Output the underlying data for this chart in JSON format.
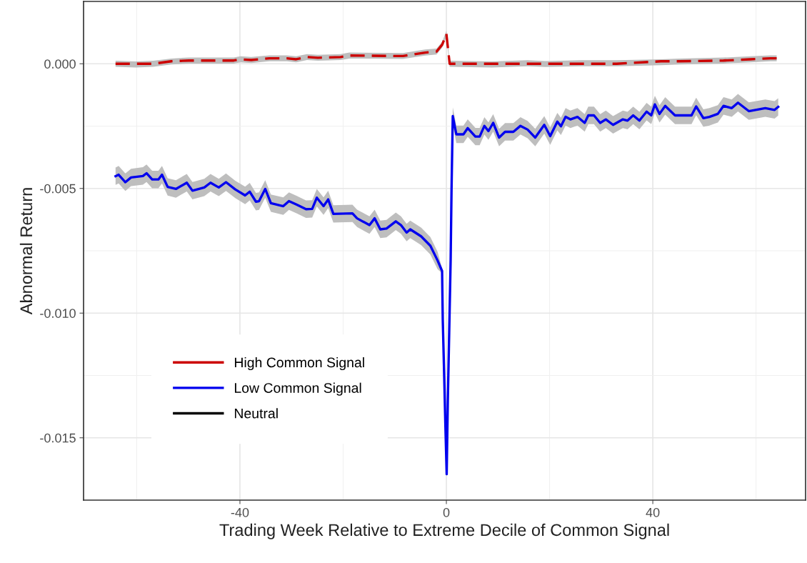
{
  "chart_data": {
    "type": "line",
    "xlabel": "Trading Week Relative to Extreme Decile of Common Signal",
    "ylabel": "Abnormal Return",
    "xlim": [
      -70.3,
      69.6
    ],
    "ylim": [
      -0.0175,
      0.0025
    ],
    "xticks": [
      -40,
      0,
      40
    ],
    "yticks": [
      {
        "value": -0.015,
        "label": "-0.015"
      },
      {
        "value": -0.01,
        "label": "-0.010"
      },
      {
        "value": -0.005,
        "label": "-0.005"
      },
      {
        "value": 0,
        "label": "0.000"
      }
    ],
    "grid": true,
    "legend": "bottom left",
    "series": [
      {
        "name": "High Common Signal",
        "color": "#cc0000",
        "line_style": "dashed",
        "x": [
          -64.1,
          -60.2,
          -56.8,
          -53.3,
          -49.9,
          -41.2,
          -39.9,
          -37.8,
          -34.3,
          -30.9,
          -29.1,
          -27.0,
          -24.9,
          -20.5,
          -18.8,
          -8.4,
          -4.1,
          -1.9,
          -0.8,
          0,
          0.64,
          8.8,
          15.7,
          19.2,
          26.1,
          33.0,
          41.6,
          45.1,
          53.7,
          58.9,
          62.8,
          64.0
        ],
        "values": [
          0.0,
          0.0,
          0.0,
          0.0001,
          0.00013,
          0.00013,
          0.00018,
          0.00015,
          0.00022,
          0.00022,
          0.00018,
          0.00027,
          0.00024,
          0.00027,
          0.00033,
          0.00031,
          0.00045,
          0.00049,
          0.00077,
          0.0012,
          0.0,
          0.0,
          0.0,
          0.0,
          0.0,
          0.0,
          0.0001,
          0.0001,
          0.00013,
          0.00018,
          0.00022,
          0.00022
        ],
        "lower": [
          -0.00012,
          -0.00015,
          -0.00012,
          -3e-05,
          1e-05,
          1e-05,
          6e-05,
          3e-05,
          0.0001,
          0.0001,
          6e-05,
          0.00015,
          0.00012,
          0.00015,
          0.00021,
          0.00019,
          0.00033,
          0.00037,
          0.00065,
          0.00108,
          -0.00012,
          -0.00015,
          -0.0001,
          -0.00013,
          -0.0001,
          -0.0001,
          -6e-05,
          -3e-05,
          1e-05,
          6e-05,
          0.0001,
          0.0001
        ],
        "upper": [
          0.00012,
          9e-05,
          0.00012,
          0.00021,
          0.00025,
          0.00025,
          0.0003,
          0.00027,
          0.00034,
          0.00034,
          0.0003,
          0.00039,
          0.00036,
          0.00039,
          0.00045,
          0.00043,
          0.00057,
          0.00061,
          0.00089,
          0.00132,
          0.00012,
          9e-05,
          0.00014,
          0.00011,
          0.00014,
          0.00014,
          0.00018,
          0.00021,
          0.00025,
          0.0003,
          0.00034,
          0.00034
        ]
      },
      {
        "name": "Low Common Signal",
        "color": "#0000ee",
        "line_style": "solid",
        "x": [
          -64.1,
          -63.5,
          -62.2,
          -61.1,
          -58.8,
          -58.1,
          -57.0,
          -55.8,
          -55.1,
          -54.0,
          -52.4,
          -50.3,
          -49.2,
          -46.9,
          -45.7,
          -44.1,
          -42.7,
          -40.9,
          -39.0,
          -38.1,
          -36.9,
          -36.3,
          -35.1,
          -34.0,
          -31.6,
          -30.5,
          -28.9,
          -27.2,
          -26.0,
          -25.1,
          -23.8,
          -22.9,
          -21.9,
          -18.2,
          -17.3,
          -14.9,
          -13.9,
          -12.8,
          -11.6,
          -9.8,
          -8.8,
          -7.7,
          -7.0,
          -4.9,
          -3.1,
          -1.7,
          -0.83,
          -0.7,
          -0.44,
          -0.2,
          0.06,
          0.28,
          0.55,
          0.83,
          1.0,
          1.24,
          1.93,
          3.31,
          4.14,
          5.62,
          6.45,
          7.37,
          8.15,
          9.07,
          10.22,
          11.37,
          12.98,
          14.36,
          15.74,
          17.22,
          18.97,
          20.12,
          21.5,
          22.2,
          23.1,
          24.03,
          25.4,
          26.8,
          27.5,
          28.6,
          29.8,
          30.9,
          32.3,
          34.2,
          35.1,
          36.2,
          37.4,
          38.8,
          39.7,
          40.4,
          41.3,
          42.4,
          44.3,
          47.5,
          48.4,
          49.8,
          50.96,
          52.6,
          53.7,
          55.3,
          56.5,
          58.6,
          61.8,
          63.6,
          64.3
        ],
        "values": [
          -0.00451,
          -0.00445,
          -0.00475,
          -0.00456,
          -0.0045,
          -0.00439,
          -0.00464,
          -0.00464,
          -0.00445,
          -0.00494,
          -0.00502,
          -0.00477,
          -0.00509,
          -0.00496,
          -0.00477,
          -0.00496,
          -0.00475,
          -0.00504,
          -0.00528,
          -0.00513,
          -0.00553,
          -0.00551,
          -0.00502,
          -0.00559,
          -0.00571,
          -0.00551,
          -0.00566,
          -0.00583,
          -0.00582,
          -0.00537,
          -0.00571,
          -0.00544,
          -0.00602,
          -0.006,
          -0.0062,
          -0.00647,
          -0.0062,
          -0.00664,
          -0.00661,
          -0.00632,
          -0.00647,
          -0.00677,
          -0.00664,
          -0.00692,
          -0.0073,
          -0.00789,
          -0.00831,
          -0.01026,
          -0.01237,
          -0.01443,
          -0.01646,
          -0.01351,
          -0.01077,
          -0.00786,
          -0.00506,
          -0.0021,
          -0.00283,
          -0.00283,
          -0.00258,
          -0.00292,
          -0.00292,
          -0.00249,
          -0.0027,
          -0.00237,
          -0.00296,
          -0.00273,
          -0.00273,
          -0.00249,
          -0.00264,
          -0.00296,
          -0.00245,
          -0.0029,
          -0.00232,
          -0.00251,
          -0.00213,
          -0.00223,
          -0.00213,
          -0.00237,
          -0.00207,
          -0.00207,
          -0.00237,
          -0.00223,
          -0.00245,
          -0.00223,
          -0.00228,
          -0.00207,
          -0.00228,
          -0.00192,
          -0.00207,
          -0.00163,
          -0.00201,
          -0.00169,
          -0.00207,
          -0.00207,
          -0.00171,
          -0.00218,
          -0.00213,
          -0.00201,
          -0.00169,
          -0.00178,
          -0.00156,
          -0.0019,
          -0.00178,
          -0.00185,
          -0.00173
        ],
        "lower": [
          -0.00486,
          -0.0048,
          -0.0051,
          -0.00491,
          -0.00485,
          -0.00474,
          -0.00499,
          -0.00499,
          -0.0048,
          -0.00529,
          -0.00537,
          -0.00512,
          -0.00544,
          -0.00531,
          -0.00512,
          -0.00531,
          -0.0051,
          -0.00539,
          -0.00563,
          -0.00548,
          -0.00588,
          -0.00586,
          -0.00537,
          -0.00594,
          -0.00606,
          -0.00586,
          -0.00601,
          -0.00618,
          -0.00617,
          -0.00572,
          -0.00606,
          -0.00579,
          -0.00637,
          -0.00635,
          -0.00655,
          -0.00682,
          -0.00655,
          -0.00699,
          -0.00696,
          -0.00667,
          -0.00682,
          -0.00712,
          -0.00699,
          -0.00727,
          -0.00765,
          -0.00824,
          -0.00841,
          -0.01036,
          -0.01247,
          -0.01453,
          -0.01656,
          -0.01361,
          -0.01087,
          -0.00796,
          -0.00516,
          -0.00245,
          -0.00318,
          -0.00318,
          -0.00293,
          -0.00327,
          -0.00327,
          -0.00284,
          -0.00305,
          -0.00272,
          -0.00331,
          -0.00308,
          -0.00308,
          -0.00284,
          -0.00299,
          -0.00331,
          -0.0028,
          -0.00325,
          -0.00267,
          -0.00286,
          -0.00248,
          -0.00258,
          -0.00248,
          -0.00272,
          -0.00242,
          -0.00242,
          -0.00272,
          -0.00258,
          -0.0028,
          -0.00258,
          -0.00263,
          -0.00242,
          -0.00263,
          -0.00227,
          -0.00242,
          -0.00198,
          -0.00236,
          -0.00204,
          -0.00242,
          -0.00242,
          -0.00206,
          -0.00253,
          -0.00248,
          -0.00236,
          -0.00204,
          -0.00213,
          -0.00191,
          -0.00225,
          -0.00213,
          -0.0022,
          -0.00208
        ],
        "upper": [
          -0.00416,
          -0.0041,
          -0.0044,
          -0.00421,
          -0.00415,
          -0.00404,
          -0.00429,
          -0.00429,
          -0.0041,
          -0.00459,
          -0.00467,
          -0.00442,
          -0.00474,
          -0.00461,
          -0.00442,
          -0.00461,
          -0.0044,
          -0.00469,
          -0.00493,
          -0.00478,
          -0.00518,
          -0.00516,
          -0.00467,
          -0.00524,
          -0.00536,
          -0.00516,
          -0.00531,
          -0.00548,
          -0.00547,
          -0.00502,
          -0.00536,
          -0.00509,
          -0.00567,
          -0.00565,
          -0.00585,
          -0.00612,
          -0.00585,
          -0.00629,
          -0.00626,
          -0.00597,
          -0.00612,
          -0.00642,
          -0.00629,
          -0.00657,
          -0.00695,
          -0.00754,
          -0.00821,
          -0.01016,
          -0.01227,
          -0.01433,
          -0.01636,
          -0.01341,
          -0.01067,
          -0.00776,
          -0.00496,
          -0.00175,
          -0.00248,
          -0.00248,
          -0.00223,
          -0.00257,
          -0.00257,
          -0.00214,
          -0.00235,
          -0.00202,
          -0.00261,
          -0.00238,
          -0.00238,
          -0.00214,
          -0.00229,
          -0.00261,
          -0.0021,
          -0.00255,
          -0.00197,
          -0.00216,
          -0.00178,
          -0.00188,
          -0.00178,
          -0.00202,
          -0.00172,
          -0.00172,
          -0.00202,
          -0.00188,
          -0.0021,
          -0.00188,
          -0.00193,
          -0.00172,
          -0.00193,
          -0.00157,
          -0.00172,
          -0.00128,
          -0.00166,
          -0.00134,
          -0.00172,
          -0.00172,
          -0.00136,
          -0.00183,
          -0.00178,
          -0.00166,
          -0.00134,
          -0.00143,
          -0.00121,
          -0.00155,
          -0.00143,
          -0.0015,
          -0.00138
        ]
      },
      {
        "name": "Neutral",
        "color": "#000000",
        "line_style": "solid"
      }
    ]
  }
}
